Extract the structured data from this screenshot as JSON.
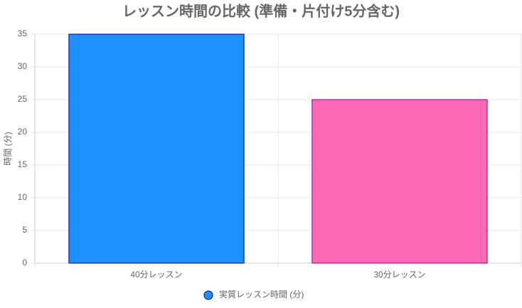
{
  "chart_data": {
    "type": "bar",
    "title": "レッスン時間の比較 (準備・片付け5分含む)",
    "y_label": "時間 (分)",
    "categories": [
      "40分レッスン",
      "30分レッスン"
    ],
    "series": [
      {
        "name": "実質レッスン時間 (分)",
        "values": [
          35,
          25
        ],
        "colors": [
          "#1e90ff",
          "#ff69b4"
        ],
        "border_colors": [
          "#00008b",
          "#8b00a0"
        ]
      }
    ],
    "ylim": [
      0,
      35
    ],
    "yticks": [
      0,
      5,
      10,
      15,
      20,
      25,
      30,
      35
    ],
    "grid": true,
    "legend": "bottom"
  }
}
